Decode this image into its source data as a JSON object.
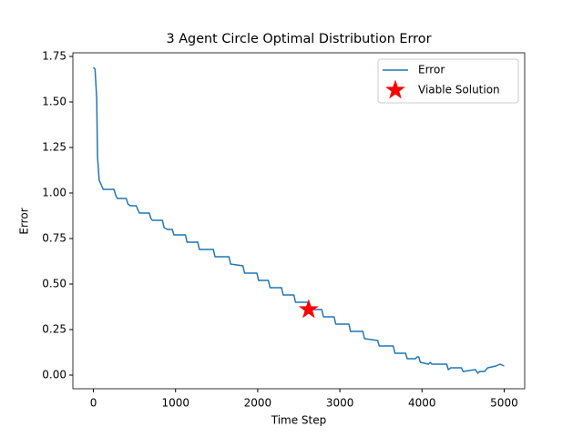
{
  "chart_data": {
    "type": "line",
    "title": "3 Agent Circle Optimal Distribution Error",
    "x_label": "Time Step",
    "y_label": "Error",
    "xlim": [
      -250,
      5250
    ],
    "ylim": [
      -0.075,
      1.77
    ],
    "xticks": [
      0,
      1000,
      2000,
      3000,
      4000,
      5000
    ],
    "yticks": [
      {
        "value": 0,
        "label": "0.00"
      },
      {
        "value": 0.25,
        "label": "0.25"
      },
      {
        "value": 0.5,
        "label": "0.50"
      },
      {
        "value": 0.75,
        "label": "0.75"
      },
      {
        "value": 1,
        "label": "1.00"
      },
      {
        "value": 1.25,
        "label": "1.25"
      },
      {
        "value": 1.5,
        "label": "1.50"
      },
      {
        "value": 1.75,
        "label": "1.75"
      }
    ],
    "legend": "upper right",
    "series": [
      {
        "name": "Error",
        "color": "#1f77b4",
        "marker": "none",
        "x": [
          0,
          20,
          40,
          50,
          70,
          100,
          120,
          250,
          270,
          290,
          400,
          420,
          450,
          520,
          540,
          560,
          680,
          700,
          720,
          840,
          860,
          900,
          960,
          980,
          1120,
          1140,
          1270,
          1290,
          1460,
          1480,
          1650,
          1670,
          1820,
          1840,
          1990,
          2010,
          2130,
          2150,
          2290,
          2310,
          2440,
          2460,
          2620,
          2640,
          2780,
          2800,
          2930,
          2950,
          3110,
          3130,
          3280,
          3300,
          3460,
          3480,
          3650,
          3670,
          3800,
          3820,
          3920,
          3940,
          3960,
          3980,
          4080,
          4100,
          4120,
          4300,
          4320,
          4350,
          4480,
          4500,
          4650,
          4680,
          4700,
          4760,
          4800,
          4900,
          4950,
          5000
        ],
        "values": [
          1.69,
          1.68,
          1.52,
          1.2,
          1.07,
          1.04,
          1.02,
          1.02,
          0.99,
          0.97,
          0.97,
          0.94,
          0.93,
          0.93,
          0.91,
          0.89,
          0.89,
          0.86,
          0.85,
          0.85,
          0.81,
          0.8,
          0.8,
          0.77,
          0.77,
          0.73,
          0.73,
          0.69,
          0.69,
          0.65,
          0.65,
          0.61,
          0.6,
          0.56,
          0.56,
          0.52,
          0.52,
          0.48,
          0.48,
          0.44,
          0.44,
          0.4,
          0.4,
          0.36,
          0.36,
          0.32,
          0.32,
          0.28,
          0.28,
          0.24,
          0.24,
          0.2,
          0.19,
          0.16,
          0.16,
          0.12,
          0.12,
          0.09,
          0.09,
          0.1,
          0.1,
          0.07,
          0.06,
          0.07,
          0.06,
          0.06,
          0.03,
          0.04,
          0.04,
          0.02,
          0.03,
          0.01,
          0.02,
          0.02,
          0.04,
          0.05,
          0.06,
          0.05
        ]
      },
      {
        "name": "Viable Solution",
        "color": "#ff0000",
        "marker": "star",
        "x": [
          2620
        ],
        "values": [
          0.36
        ]
      }
    ]
  }
}
